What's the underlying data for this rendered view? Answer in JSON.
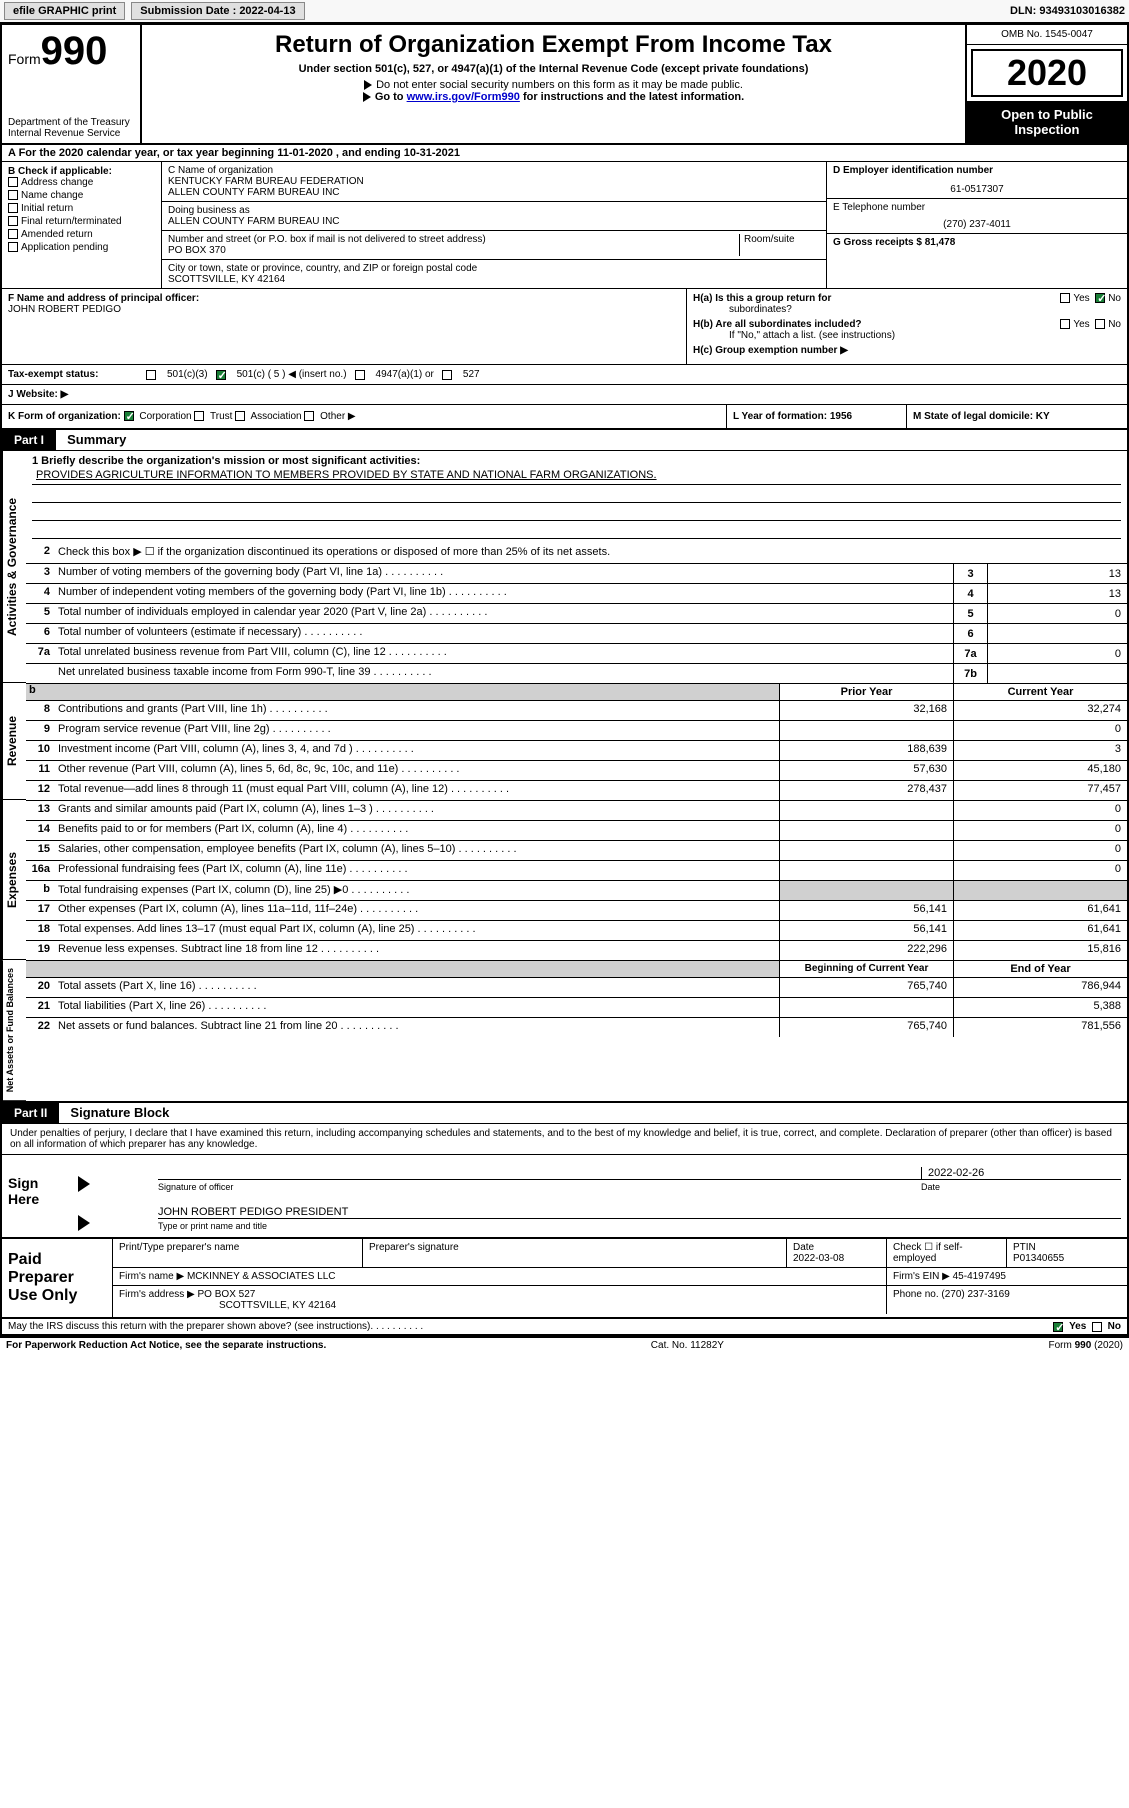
{
  "topbar": {
    "efile_label": "efile GRAPHIC print",
    "submission_label": "Submission Date : 2022-04-13",
    "dln_label": "DLN: 93493103016382"
  },
  "header": {
    "form_label": "Form",
    "form_number": "990",
    "dept": "Department of the Treasury",
    "irs": "Internal Revenue Service",
    "title": "Return of Organization Exempt From Income Tax",
    "subtitle": "Under section 501(c), 527, or 4947(a)(1) of the Internal Revenue Code (except private foundations)",
    "note1": "Do not enter social security numbers on this form as it may be made public.",
    "note2_prefix": "Go to ",
    "note2_link": "www.irs.gov/Form990",
    "note2_suffix": " for instructions and the latest information.",
    "omb": "OMB No. 1545-0047",
    "year": "2020",
    "open": "Open to Public",
    "inspection": "Inspection"
  },
  "row_a": {
    "text": "A For the 2020 calendar year, or tax year beginning 11-01-2020    , and ending 10-31-2021"
  },
  "col_b": {
    "header": "B Check if applicable:",
    "items": [
      "Address change",
      "Name change",
      "Initial return",
      "Final return/terminated",
      "Amended return",
      "Application pending"
    ]
  },
  "col_c": {
    "name_label": "C Name of organization",
    "name1": "KENTUCKY FARM BUREAU FEDERATION",
    "name2": "ALLEN COUNTY FARM BUREAU INC",
    "dba_label": "Doing business as",
    "dba": "ALLEN COUNTY FARM BUREAU INC",
    "addr_label": "Number and street (or P.O. box if mail is not delivered to street address)",
    "room_label": "Room/suite",
    "addr": "PO BOX 370",
    "city_label": "City or town, state or province, country, and ZIP or foreign postal code",
    "city": "SCOTTSVILLE, KY  42164"
  },
  "col_d": {
    "ein_label": "D Employer identification number",
    "ein": "61-0517307",
    "phone_label": "E Telephone number",
    "phone": "(270) 237-4011",
    "gross_label": "G Gross receipts $ 81,478"
  },
  "row_f": {
    "label": "F Name and address of principal officer:",
    "name": "JOHN ROBERT PEDIGO"
  },
  "row_h": {
    "ha": "H(a)  Is this a group return for",
    "ha2": "subordinates?",
    "hb": "H(b)  Are all subordinates included?",
    "hb_note": "If \"No,\" attach a list. (see instructions)",
    "hc": "H(c)  Group exemption number ▶"
  },
  "tax_exempt": {
    "label": "Tax-exempt status:",
    "opt1": "501(c)(3)",
    "opt2": "501(c) ( 5 ) ◀ (insert no.)",
    "opt3": "4947(a)(1) or",
    "opt4": "527"
  },
  "row_j": {
    "label": "J   Website: ▶"
  },
  "row_k": {
    "label": "K Form of organization:",
    "corp": "Corporation",
    "trust": "Trust",
    "assoc": "Association",
    "other": "Other ▶"
  },
  "row_l": {
    "label": "L Year of formation: 1956"
  },
  "row_m": {
    "label": "M State of legal domicile: KY"
  },
  "part1": {
    "tag": "Part I",
    "title": "Summary",
    "line1_label": "1  Briefly describe the organization's mission or most significant activities:",
    "mission": "PROVIDES AGRICULTURE INFORMATION TO MEMBERS PROVIDED BY STATE AND NATIONAL FARM ORGANIZATIONS.",
    "line2": "Check this box ▶ ☐  if the organization discontinued its operations or disposed of more than 25% of its net assets.",
    "vlabel_ag": "Activities & Governance",
    "vlabel_rev": "Revenue",
    "vlabel_exp": "Expenses",
    "vlabel_net": "Net Assets or Fund Balances",
    "rows_ag": [
      {
        "n": "3",
        "label": "Number of voting members of the governing body (Part VI, line 1a)",
        "cell": "3",
        "val": "13"
      },
      {
        "n": "4",
        "label": "Number of independent voting members of the governing body (Part VI, line 1b)",
        "cell": "4",
        "val": "13"
      },
      {
        "n": "5",
        "label": "Total number of individuals employed in calendar year 2020 (Part V, line 2a)",
        "cell": "5",
        "val": "0"
      },
      {
        "n": "6",
        "label": "Total number of volunteers (estimate if necessary)",
        "cell": "6",
        "val": ""
      },
      {
        "n": "7a",
        "label": "Total unrelated business revenue from Part VIII, column (C), line 12",
        "cell": "7a",
        "val": "0"
      },
      {
        "n": "",
        "label": "Net unrelated business taxable income from Form 990-T, line 39",
        "cell": "7b",
        "val": ""
      }
    ],
    "twocol_h1": "Prior Year",
    "twocol_h2": "Current Year",
    "rows_rev": [
      {
        "n": "8",
        "label": "Contributions and grants (Part VIII, line 1h)",
        "v1": "32,168",
        "v2": "32,274"
      },
      {
        "n": "9",
        "label": "Program service revenue (Part VIII, line 2g)",
        "v1": "",
        "v2": "0"
      },
      {
        "n": "10",
        "label": "Investment income (Part VIII, column (A), lines 3, 4, and 7d )",
        "v1": "188,639",
        "v2": "3"
      },
      {
        "n": "11",
        "label": "Other revenue (Part VIII, column (A), lines 5, 6d, 8c, 9c, 10c, and 11e)",
        "v1": "57,630",
        "v2": "45,180"
      },
      {
        "n": "12",
        "label": "Total revenue—add lines 8 through 11 (must equal Part VIII, column (A), line 12)",
        "v1": "278,437",
        "v2": "77,457"
      }
    ],
    "rows_exp": [
      {
        "n": "13",
        "label": "Grants and similar amounts paid (Part IX, column (A), lines 1–3 )",
        "v1": "",
        "v2": "0"
      },
      {
        "n": "14",
        "label": "Benefits paid to or for members (Part IX, column (A), line 4)",
        "v1": "",
        "v2": "0"
      },
      {
        "n": "15",
        "label": "Salaries, other compensation, employee benefits (Part IX, column (A), lines 5–10)",
        "v1": "",
        "v2": "0"
      },
      {
        "n": "16a",
        "label": "Professional fundraising fees (Part IX, column (A), line 11e)",
        "v1": "",
        "v2": "0"
      },
      {
        "n": "b",
        "label": "Total fundraising expenses (Part IX, column (D), line 25) ▶0",
        "v1": "",
        "v2": ""
      },
      {
        "n": "17",
        "label": "Other expenses (Part IX, column (A), lines 11a–11d, 11f–24e)",
        "v1": "56,141",
        "v2": "61,641"
      },
      {
        "n": "18",
        "label": "Total expenses. Add lines 13–17 (must equal Part IX, column (A), line 25)",
        "v1": "56,141",
        "v2": "61,641"
      },
      {
        "n": "19",
        "label": "Revenue less expenses. Subtract line 18 from line 12",
        "v1": "222,296",
        "v2": "15,816"
      }
    ],
    "net_h1": "Beginning of Current Year",
    "net_h2": "End of Year",
    "rows_net": [
      {
        "n": "20",
        "label": "Total assets (Part X, line 16)",
        "v1": "765,740",
        "v2": "786,944"
      },
      {
        "n": "21",
        "label": "Total liabilities (Part X, line 26)",
        "v1": "",
        "v2": "5,388"
      },
      {
        "n": "22",
        "label": "Net assets or fund balances. Subtract line 21 from line 20",
        "v1": "765,740",
        "v2": "781,556"
      }
    ]
  },
  "part2": {
    "tag": "Part II",
    "title": "Signature Block",
    "decl": "Under penalties of perjury, I declare that I have examined this return, including accompanying schedules and statements, and to the best of my knowledge and belief, it is true, correct, and complete. Declaration of preparer (other than officer) is based on all information of which preparer has any knowledge."
  },
  "sign": {
    "here": "Sign Here",
    "sig_officer_label": "Signature of officer",
    "date": "2022-02-26",
    "date_label": "Date",
    "name": "JOHN ROBERT PEDIGO  PRESIDENT",
    "name_label": "Type or print name and title"
  },
  "paid": {
    "label": "Paid Preparer Use Only",
    "h_name": "Print/Type preparer's name",
    "h_sig": "Preparer's signature",
    "h_date": "Date",
    "date_val": "2022-03-08",
    "h_check": "Check ☐ if self-employed",
    "h_ptin": "PTIN",
    "ptin_val": "P01340655",
    "firm_name_label": "Firm's name     ▶",
    "firm_name": "MCKINNEY & ASSOCIATES LLC",
    "firm_ein_label": "Firm's EIN ▶",
    "firm_ein": "45-4197495",
    "firm_addr_label": "Firm's address ▶",
    "firm_addr1": "PO BOX 527",
    "firm_addr2": "SCOTTSVILLE, KY  42164",
    "phone_label": "Phone no. (270) 237-3169"
  },
  "footer": {
    "discuss": "May the IRS discuss this return with the preparer shown above? (see instructions)",
    "yes": "Yes",
    "no": "No",
    "paperwork": "For Paperwork Reduction Act Notice, see the separate instructions.",
    "cat": "Cat. No. 11282Y",
    "form": "Form 990 (2020)"
  }
}
